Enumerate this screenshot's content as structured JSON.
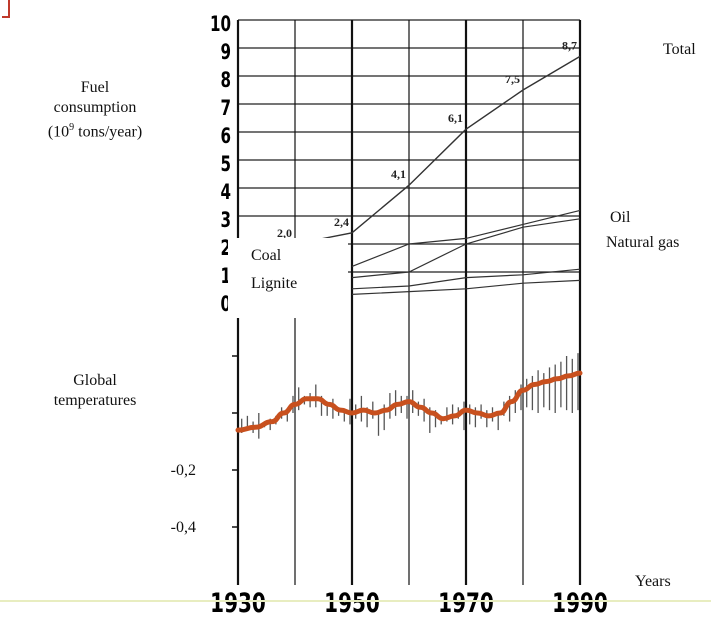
{
  "chart_data": [
    {
      "type": "line",
      "title": "",
      "ylabel_lines": [
        "Fuel",
        "consumption",
        "(10",
        "9",
        " tons/year)"
      ],
      "xlabel": "Years",
      "x_ticks": [
        "1930",
        "1950",
        "1970",
        "1990"
      ],
      "xlim": [
        1930,
        1990
      ],
      "y_ticks": [
        "0",
        "1",
        "2",
        "3",
        "4",
        "5",
        "6",
        "7",
        "8",
        "9",
        "10"
      ],
      "ylim": [
        0,
        10
      ],
      "grid": true,
      "series": [
        {
          "name": "Total",
          "x": [
            1940,
            1950,
            1960,
            1970,
            1980,
            1990
          ],
          "y": [
            2.0,
            2.4,
            4.1,
            6.1,
            7.5,
            8.7
          ]
        },
        {
          "name": "Oil",
          "x": [
            1950,
            1960,
            1970,
            1980,
            1990
          ],
          "y": [
            1.2,
            2.0,
            2.2,
            2.7,
            3.2
          ]
        },
        {
          "name": "Natural gas",
          "x": [
            1950,
            1960,
            1970,
            1980,
            1990
          ],
          "y": [
            0.8,
            1.0,
            2.0,
            2.6,
            2.9
          ]
        },
        {
          "name": "Coal",
          "x": [
            1950,
            1960,
            1970,
            1980,
            1990
          ],
          "y": [
            0.4,
            0.5,
            0.8,
            0.9,
            1.1
          ]
        },
        {
          "name": "Lignite",
          "x": [
            1950,
            1960,
            1970,
            1980,
            1990
          ],
          "y": [
            0.2,
            0.3,
            0.4,
            0.6,
            0.7
          ]
        }
      ],
      "data_labels": [
        {
          "x": 1940,
          "y": 2.0,
          "text": "2,0"
        },
        {
          "x": 1950,
          "y": 2.4,
          "text": "2,4"
        },
        {
          "x": 1960,
          "y": 4.1,
          "text": "4,1"
        },
        {
          "x": 1970,
          "y": 6.1,
          "text": "6,1"
        },
        {
          "x": 1980,
          "y": 7.5,
          "text": "7,5"
        },
        {
          "x": 1990,
          "y": 8.7,
          "text": "8,7"
        }
      ],
      "series_labels": {
        "total": "Total",
        "oil": "Oil",
        "gas": "Natural gas",
        "coal": "Coal",
        "lignite": "Lignite"
      }
    },
    {
      "type": "line",
      "title": "",
      "ylabel_lines": [
        "Global",
        "temperatures"
      ],
      "y_ticks": [
        "-0,2",
        "-0,4"
      ],
      "ylim": [
        -0.45,
        0.22
      ],
      "xlim": [
        1930,
        1990
      ],
      "grid": true,
      "smoothed": {
        "x": [
          1930,
          1933,
          1936,
          1938,
          1940,
          1942,
          1944,
          1946,
          1948,
          1950,
          1952,
          1954,
          1956,
          1958,
          1960,
          1962,
          1964,
          1966,
          1968,
          1970,
          1972,
          1974,
          1976,
          1978,
          1980,
          1982,
          1984,
          1986,
          1988,
          1990
        ],
        "y": [
          -0.06,
          -0.05,
          -0.03,
          0.0,
          0.03,
          0.05,
          0.05,
          0.03,
          0.01,
          0.0,
          0.01,
          0.0,
          0.01,
          0.03,
          0.04,
          0.02,
          0.0,
          -0.02,
          -0.01,
          0.01,
          0.0,
          -0.01,
          0.0,
          0.04,
          0.08,
          0.1,
          0.11,
          0.12,
          0.13,
          0.14
        ],
        "color": "#c8501e"
      },
      "annual_color": "#555555",
      "annual": [
        [
          1931,
          -0.02,
          -0.07
        ],
        [
          1932,
          -0.01,
          -0.06
        ],
        [
          1933,
          -0.03,
          -0.07
        ],
        [
          1934,
          0.0,
          -0.09
        ],
        [
          1935,
          -0.04,
          -0.05
        ],
        [
          1936,
          -0.02,
          -0.06
        ],
        [
          1937,
          -0.01,
          -0.04
        ],
        [
          1938,
          0.02,
          -0.02
        ],
        [
          1939,
          0.01,
          -0.03
        ],
        [
          1940,
          0.06,
          0.0
        ],
        [
          1941,
          0.09,
          0.01
        ],
        [
          1942,
          0.06,
          0.03
        ],
        [
          1943,
          0.07,
          0.02
        ],
        [
          1944,
          0.1,
          0.02
        ],
        [
          1945,
          0.06,
          -0.01
        ],
        [
          1946,
          0.04,
          -0.01
        ],
        [
          1947,
          0.05,
          -0.02
        ],
        [
          1948,
          0.02,
          -0.01
        ],
        [
          1949,
          0.01,
          -0.03
        ],
        [
          1950,
          0.05,
          -0.04
        ],
        [
          1951,
          0.03,
          -0.02
        ],
        [
          1952,
          0.06,
          -0.03
        ],
        [
          1953,
          0.02,
          -0.05
        ],
        [
          1954,
          0.04,
          -0.02
        ],
        [
          1955,
          0.01,
          -0.08
        ],
        [
          1956,
          0.03,
          -0.06
        ],
        [
          1957,
          0.07,
          -0.02
        ],
        [
          1958,
          0.08,
          -0.01
        ],
        [
          1959,
          0.06,
          0.0
        ],
        [
          1960,
          0.06,
          -0.02
        ],
        [
          1961,
          0.08,
          0.0
        ],
        [
          1962,
          0.04,
          -0.01
        ],
        [
          1963,
          0.05,
          -0.03
        ],
        [
          1964,
          0.02,
          -0.07
        ],
        [
          1965,
          0.01,
          -0.05
        ],
        [
          1966,
          -0.01,
          -0.04
        ],
        [
          1967,
          0.02,
          -0.03
        ],
        [
          1968,
          0.03,
          -0.04
        ],
        [
          1969,
          0.02,
          -0.02
        ],
        [
          1970,
          0.04,
          -0.06
        ],
        [
          1971,
          0.03,
          -0.04
        ],
        [
          1972,
          0.02,
          -0.05
        ],
        [
          1973,
          0.03,
          -0.02
        ],
        [
          1974,
          0.01,
          -0.05
        ],
        [
          1975,
          0.02,
          -0.03
        ],
        [
          1976,
          0.0,
          -0.06
        ],
        [
          1977,
          0.04,
          -0.01
        ],
        [
          1978,
          0.06,
          -0.03
        ],
        [
          1979,
          0.08,
          0.0
        ],
        [
          1980,
          0.1,
          0.01
        ],
        [
          1981,
          0.12,
          0.02
        ],
        [
          1982,
          0.13,
          0.01
        ],
        [
          1983,
          0.15,
          0.0
        ],
        [
          1984,
          0.14,
          0.02
        ],
        [
          1985,
          0.16,
          0.01
        ],
        [
          1986,
          0.17,
          0.0
        ],
        [
          1987,
          0.18,
          0.02
        ],
        [
          1988,
          0.2,
          0.01
        ],
        [
          1989,
          0.19,
          0.0
        ],
        [
          1990,
          0.21,
          0.01
        ]
      ]
    }
  ]
}
